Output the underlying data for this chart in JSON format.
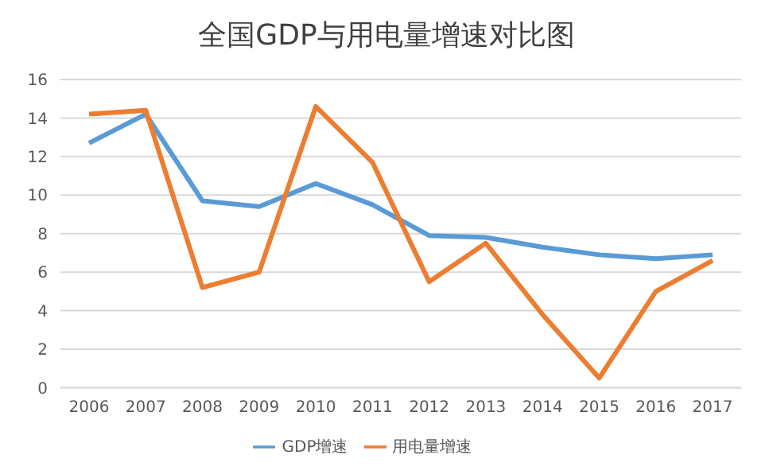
{
  "chart_data": {
    "type": "line",
    "title": "全国GDP与用电量增速对比图",
    "categories": [
      "2006",
      "2007",
      "2008",
      "2009",
      "2010",
      "2011",
      "2012",
      "2013",
      "2014",
      "2015",
      "2016",
      "2017"
    ],
    "series": [
      {
        "name": "GDP增速",
        "color": "#5b9bd5",
        "values": [
          12.7,
          14.2,
          9.7,
          9.4,
          10.6,
          9.5,
          7.9,
          7.8,
          7.3,
          6.9,
          6.7,
          6.9
        ]
      },
      {
        "name": "用电量增速",
        "color": "#ed7d31",
        "values": [
          14.2,
          14.4,
          5.2,
          6.0,
          14.6,
          11.7,
          5.5,
          7.5,
          3.8,
          0.5,
          5.0,
          6.6
        ]
      }
    ],
    "ylim": [
      0,
      16
    ],
    "yticks": [
      0,
      2,
      4,
      6,
      8,
      10,
      12,
      14,
      16
    ],
    "grid": "y",
    "legend": "bottom",
    "marker": "none",
    "line_style": "solid"
  }
}
